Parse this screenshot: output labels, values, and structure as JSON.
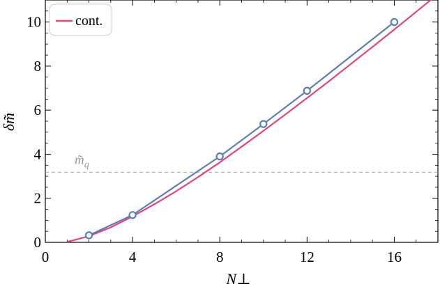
{
  "chart_data": {
    "type": "line",
    "xlabel": "N⊥",
    "ylabel": "δm̃",
    "xlim": [
      0,
      18
    ],
    "ylim": [
      0,
      11
    ],
    "x_ticks": [
      0,
      4,
      8,
      12,
      16
    ],
    "y_ticks": [
      0,
      2,
      4,
      6,
      8,
      10
    ],
    "legend": {
      "position": "top-left",
      "entries": [
        "cont."
      ]
    },
    "series": [
      {
        "name": "cont.",
        "style": "line",
        "color": "#e0457b",
        "x": [
          1,
          2,
          3,
          4,
          5,
          6,
          7,
          8,
          9,
          10,
          11,
          12,
          13,
          14,
          15,
          16,
          17,
          18
        ],
        "y": [
          0.02,
          0.28,
          0.68,
          1.18,
          1.73,
          2.32,
          2.96,
          3.63,
          4.34,
          5.06,
          5.8,
          6.55,
          7.31,
          8.09,
          8.87,
          9.66,
          10.46,
          11.27
        ]
      },
      {
        "style": "line+markers",
        "color": "#5b7fb4",
        "x": [
          2,
          4,
          8,
          10,
          12,
          16
        ],
        "y": [
          0.32,
          1.24,
          3.9,
          5.37,
          6.88,
          10.0
        ]
      }
    ],
    "reference_line": {
      "y": 3.18,
      "label": "m̃",
      "label_subscript": "q",
      "color": "#aaaaaa",
      "dashed": true
    }
  }
}
